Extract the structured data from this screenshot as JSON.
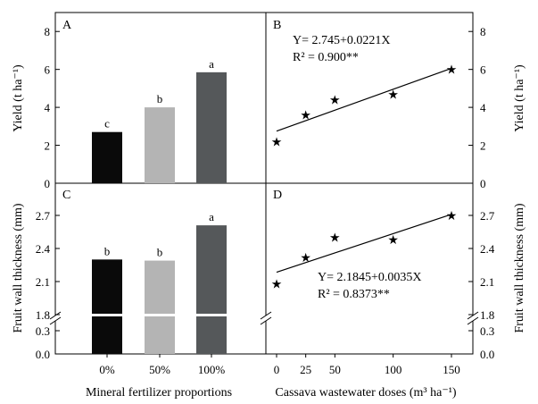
{
  "chart_data": [
    {
      "panel": "A",
      "type": "bar",
      "panel_label": "A",
      "ylabel": "Yield (t ha⁻¹)",
      "ylim": [
        0,
        9
      ],
      "yticks": [
        "0",
        "2",
        "4",
        "6",
        "8"
      ],
      "ytick_values": [
        0,
        2,
        4,
        6,
        8
      ],
      "categories": [
        "0%",
        "50%",
        "100%"
      ],
      "values": [
        2.7,
        4.0,
        5.85
      ],
      "letters": [
        "c",
        "b",
        "a"
      ],
      "colors": [
        "#0a0a0a",
        "#b4b4b4",
        "#55585a"
      ]
    },
    {
      "panel": "B",
      "type": "scatter",
      "panel_label": "B",
      "ylabel": "Yield (t ha⁻¹)",
      "ylim": [
        0,
        9
      ],
      "yticks": [
        "0",
        "2",
        "4",
        "6",
        "8"
      ],
      "ytick_values": [
        0,
        2,
        4,
        6,
        8
      ],
      "x": [
        0,
        25,
        50,
        100,
        150
      ],
      "y": [
        2.2,
        3.6,
        4.4,
        4.7,
        6.0
      ],
      "equation": "Y=  2.745+0.0221X",
      "r2": "R² = 0.900**",
      "fit": {
        "intercept": 2.745,
        "slope": 0.0221
      }
    },
    {
      "panel": "C",
      "type": "bar",
      "panel_label": "C",
      "ylabel": "Fruit wall thickness (mm)",
      "yticks_upper": [
        "1.8",
        "2.1",
        "2.4",
        "2.7"
      ],
      "ytick_values_upper": [
        1.8,
        2.1,
        2.4,
        2.7
      ],
      "yticks_lower": [
        "0.0",
        "0.3"
      ],
      "ytick_values_lower": [
        0.0,
        0.3
      ],
      "axis_break": true,
      "categories": [
        "0%",
        "50%",
        "100%"
      ],
      "values": [
        2.3,
        2.29,
        2.61
      ],
      "letters": [
        "b",
        "b",
        "a"
      ],
      "colors": [
        "#0a0a0a",
        "#b4b4b4",
        "#55585a"
      ],
      "xlabel": "Mineral fertilizer proportions"
    },
    {
      "panel": "D",
      "type": "scatter",
      "panel_label": "D",
      "ylabel": "Fruit wall thickness (mm)",
      "yticks_upper": [
        "1.8",
        "2.1",
        "2.4",
        "2.7"
      ],
      "ytick_values_upper": [
        1.8,
        2.1,
        2.4,
        2.7
      ],
      "yticks_lower": [
        "0.0",
        "0.3"
      ],
      "ytick_values_lower": [
        0.0,
        0.3
      ],
      "axis_break": true,
      "x": [
        0,
        25,
        50,
        100,
        150
      ],
      "y": [
        2.08,
        2.32,
        2.5,
        2.48,
        2.7
      ],
      "xticks": [
        "0",
        "25",
        "50",
        "100",
        "150"
      ],
      "xtick_values": [
        0,
        25,
        50,
        100,
        150
      ],
      "equation": "Y= 2.1845+0.0035X",
      "r2": "R² = 0.8373**",
      "fit": {
        "intercept": 2.1845,
        "slope": 0.0035
      },
      "xlabel": "Cassava wastewater doses (m³ ha⁻¹)"
    }
  ]
}
